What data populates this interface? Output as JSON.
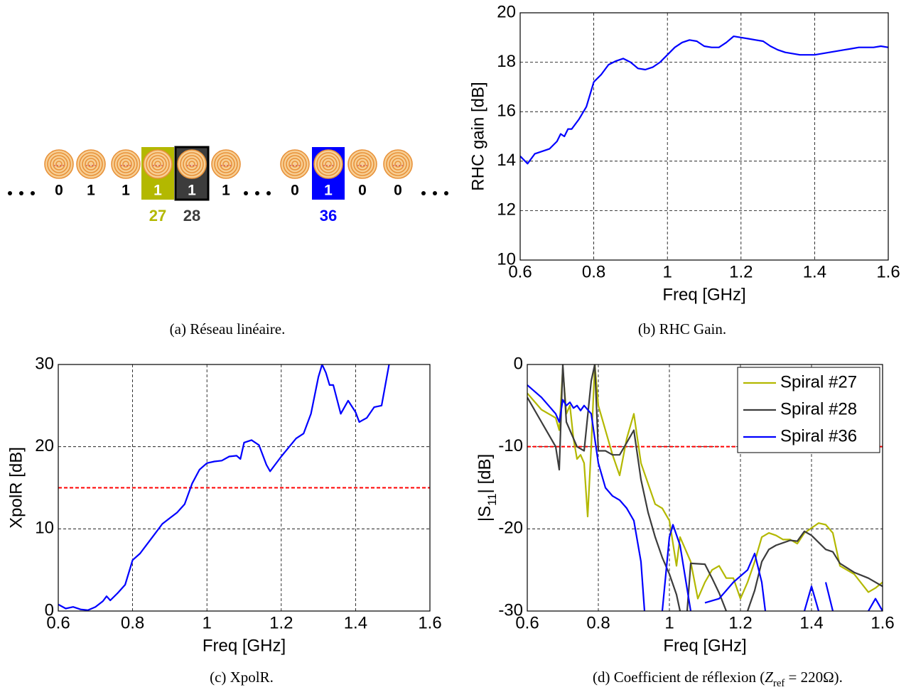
{
  "diagram": {
    "elements": [
      {
        "bit": 0
      },
      {
        "bit": 1
      },
      {
        "bit": 1
      },
      {
        "bit": 1,
        "label": 27,
        "color": "#b3b800"
      },
      {
        "bit": 1,
        "label": 28,
        "color": "#3c3c3c"
      },
      {
        "bit": 1
      },
      {
        "bit": 0
      },
      {
        "bit": 1,
        "label": 36,
        "color": "#0000ff"
      },
      {
        "bit": 0
      },
      {
        "bit": 0
      }
    ],
    "caption": "(a) Réseau linéaire."
  },
  "chart_data": [
    {
      "type": "line",
      "xlabel": "Freq [GHz]",
      "ylabel": "RHC gain [dB]",
      "caption": "(b) RHC Gain.",
      "xlim": [
        0.6,
        1.6
      ],
      "ylim": [
        10,
        20
      ],
      "xticks": [
        0.6,
        0.8,
        1,
        1.2,
        1.4,
        1.6
      ],
      "yticks": [
        10,
        12,
        14,
        16,
        18,
        20
      ],
      "grid": true,
      "x": [
        0.6,
        0.62,
        0.64,
        0.66,
        0.68,
        0.7,
        0.71,
        0.72,
        0.73,
        0.74,
        0.76,
        0.78,
        0.8,
        0.82,
        0.84,
        0.86,
        0.88,
        0.9,
        0.92,
        0.94,
        0.96,
        0.98,
        1,
        1.02,
        1.04,
        1.06,
        1.08,
        1.1,
        1.12,
        1.14,
        1.16,
        1.18,
        1.2,
        1.22,
        1.24,
        1.26,
        1.28,
        1.3,
        1.32,
        1.34,
        1.36,
        1.38,
        1.4,
        1.42,
        1.44,
        1.46,
        1.48,
        1.5,
        1.52,
        1.54,
        1.56,
        1.58,
        1.6
      ],
      "series": [
        {
          "color": "#0000ff",
          "values": [
            14.2,
            13.9,
            14.3,
            14.4,
            14.5,
            14.8,
            15.1,
            15.0,
            15.3,
            15.3,
            15.7,
            16.2,
            17.2,
            17.5,
            17.9,
            18.05,
            18.15,
            18.0,
            17.75,
            17.7,
            17.8,
            18.0,
            18.3,
            18.6,
            18.8,
            18.9,
            18.85,
            18.65,
            18.6,
            18.6,
            18.8,
            19.05,
            19.0,
            18.95,
            18.9,
            18.85,
            18.65,
            18.5,
            18.4,
            18.35,
            18.3,
            18.3,
            18.3,
            18.35,
            18.4,
            18.45,
            18.5,
            18.55,
            18.6,
            18.6,
            18.6,
            18.65,
            18.6
          ]
        }
      ]
    },
    {
      "type": "line",
      "xlabel": "Freq [GHz]",
      "ylabel": "XpolR [dB]",
      "caption": "(c) XpolR.",
      "xlim": [
        0.6,
        1.6
      ],
      "ylim": [
        0,
        30
      ],
      "xticks": [
        0.6,
        0.8,
        1,
        1.2,
        1.4,
        1.6
      ],
      "yticks": [
        0,
        10,
        20,
        30
      ],
      "grid": true,
      "reference_line": {
        "value": 15,
        "color": "#ff0000"
      },
      "x": [
        0.6,
        0.62,
        0.64,
        0.66,
        0.68,
        0.7,
        0.72,
        0.73,
        0.74,
        0.76,
        0.78,
        0.8,
        0.82,
        0.84,
        0.86,
        0.88,
        0.9,
        0.92,
        0.94,
        0.96,
        0.98,
        1,
        1.02,
        1.04,
        1.06,
        1.08,
        1.09,
        1.1,
        1.12,
        1.14,
        1.16,
        1.17,
        1.2,
        1.24,
        1.26,
        1.28,
        1.3,
        1.31,
        1.32,
        1.33,
        1.34,
        1.36,
        1.38,
        1.4,
        1.41,
        1.43,
        1.45,
        1.47,
        1.49
      ],
      "series": [
        {
          "color": "#0000ff",
          "values": [
            0.8,
            0.3,
            0.5,
            0.2,
            0.1,
            0.5,
            1.2,
            1.8,
            1.3,
            2.2,
            3.2,
            6.2,
            7.0,
            8.2,
            9.4,
            10.6,
            11.3,
            12.0,
            13.0,
            15.5,
            17.2,
            18.0,
            18.2,
            18.3,
            18.8,
            18.9,
            18.5,
            20.5,
            20.8,
            20.2,
            17.8,
            17.0,
            18.8,
            21.0,
            21.6,
            24.0,
            28.5,
            30,
            29.0,
            27.5,
            27.5,
            24.0,
            25.6,
            24.2,
            23.0,
            23.5,
            24.8,
            25.0,
            30
          ]
        }
      ]
    },
    {
      "type": "line",
      "xlabel": "Freq [GHz]",
      "ylabel": [
        "|S",
        "11",
        "| [dB]"
      ],
      "caption": [
        "(d) Coefficient de réflexion (",
        "Z",
        "ref",
        " = 220Ω)."
      ],
      "xlim": [
        0.6,
        1.6
      ],
      "ylim": [
        -30,
        0
      ],
      "xticks": [
        0.6,
        0.8,
        1,
        1.2,
        1.4,
        1.6
      ],
      "yticks": [
        -30,
        -20,
        -10,
        0
      ],
      "grid": true,
      "legend": "northeast",
      "reference_line": {
        "value": -10,
        "color": "#ff0000"
      },
      "series": [
        {
          "name": "Spiral #27",
          "color": "#b3b800",
          "x": [
            0.6,
            0.64,
            0.68,
            0.69,
            0.7,
            0.71,
            0.72,
            0.73,
            0.74,
            0.75,
            0.76,
            0.77,
            0.78,
            0.79,
            0.8,
            0.82,
            0.84,
            0.86,
            0.88,
            0.9,
            0.92,
            0.94,
            0.96,
            0.98,
            1,
            1.02,
            1.03,
            1.06,
            1.08,
            1.1,
            1.12,
            1.14,
            1.16,
            1.18,
            1.2,
            1.22,
            1.24,
            1.26,
            1.28,
            1.3,
            1.32,
            1.34,
            1.36,
            1.38,
            1.42,
            1.44,
            1.46,
            1.48,
            1.52,
            1.56,
            1.58,
            1.6
          ],
          "values": [
            -3.5,
            -5.5,
            -6.5,
            -8,
            -0.5,
            -6,
            -5,
            -9,
            -11.5,
            -11,
            -12,
            -18.5,
            -10,
            0,
            -5,
            -8,
            -11,
            -13.5,
            -9,
            -6,
            -12,
            -14.5,
            -17,
            -17.5,
            -19,
            -24.5,
            -21,
            -24,
            -28.5,
            -26.5,
            -25,
            -24.5,
            -26,
            -26,
            -28.5,
            -26.5,
            -24,
            -21,
            -20.5,
            -20.8,
            -21.3,
            -21.3,
            -21.8,
            -20.5,
            -19.3,
            -19.5,
            -20.5,
            -24.5,
            -25.5,
            -27.7,
            -27.2,
            -26.5
          ]
        },
        {
          "name": "Spiral #28",
          "color": "#3c3c3c",
          "x": [
            0.6,
            0.64,
            0.66,
            0.68,
            0.69,
            0.7,
            0.71,
            0.72,
            0.74,
            0.76,
            0.78,
            0.79,
            0.8,
            0.82,
            0.84,
            0.86,
            0.88,
            0.9,
            0.92,
            0.94,
            0.96,
            0.98,
            1,
            1.02,
            1.03,
            1.04,
            1.05,
            1.06,
            1.1,
            1.12,
            1.14,
            1.16,
            1.19,
            1.22,
            1.24,
            1.26,
            1.28,
            1.3,
            1.34,
            1.36,
            1.38,
            1.4,
            1.44,
            1.46,
            1.48,
            1.52,
            1.56,
            1.6
          ],
          "values": [
            -4,
            -7,
            -8.5,
            -10,
            -12.8,
            0,
            -7,
            -8,
            -10,
            -10.5,
            -2,
            0,
            -10.5,
            -10.5,
            -11,
            -11,
            -9.5,
            -8,
            -14,
            -18,
            -21,
            -23.5,
            -25.5,
            -28,
            -30,
            null,
            -30,
            -24.2,
            -24.3,
            -26,
            -27.8,
            -30,
            null,
            -30,
            -27.5,
            -24,
            -22.5,
            -22,
            -21.4,
            -21.5,
            -20.3,
            -20.8,
            -22.5,
            -22.8,
            -24.2,
            -25.3,
            -26,
            -27
          ]
        },
        {
          "name": "Spiral #36",
          "color": "#0000ff",
          "x": [
            0.6,
            0.64,
            0.66,
            0.68,
            0.69,
            0.7,
            0.71,
            0.72,
            0.73,
            0.74,
            0.75,
            0.76,
            0.78,
            0.8,
            0.82,
            0.84,
            0.86,
            0.88,
            0.9,
            0.92,
            0.93,
            0.96,
            0.98,
            1,
            1.01,
            1.03,
            1.06,
            1.08,
            1.1,
            1.14,
            1.16,
            1.18,
            1.22,
            1.24,
            1.26,
            1.27,
            1.32,
            1.38,
            1.4,
            1.41,
            1.42,
            1.43,
            1.44,
            1.46,
            1.5,
            1.56,
            1.58,
            1.6
          ],
          "values": [
            -2.5,
            -4,
            -5,
            -6,
            -7,
            -4.3,
            -5,
            -4.6,
            -5.3,
            -5,
            -5.6,
            -5,
            -6,
            -12,
            -15,
            -16,
            -16.5,
            -17.5,
            -19,
            -24,
            -30,
            null,
            -30,
            -21,
            -19.5,
            -22,
            -30,
            null,
            -29,
            -28.5,
            -27.5,
            -26.5,
            -25,
            -23,
            -26.5,
            -30,
            null,
            -30,
            -27,
            -28.5,
            -30,
            null,
            -26.5,
            -30,
            null,
            -30,
            -28.5,
            -30
          ]
        }
      ]
    }
  ]
}
